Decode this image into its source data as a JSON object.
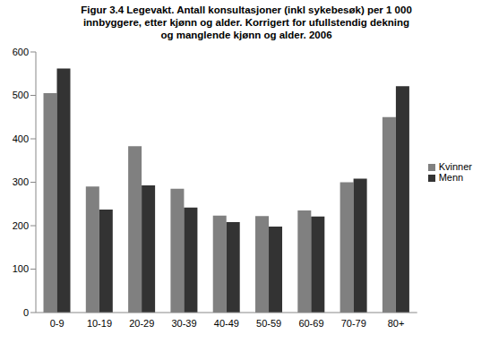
{
  "chart_data": {
    "type": "bar",
    "title": "Figur 3.4 Legevakt. Antall konsultasjoner (inkl sykebesøk) per 1 000 innbyggere, etter kjønn og alder. Korrigert for ufullstendig dekning og manglende kjønn og alder. 2006",
    "categories": [
      "0-9",
      "10-19",
      "20-29",
      "30-39",
      "40-49",
      "50-59",
      "60-69",
      "70-79",
      "80+"
    ],
    "series": [
      {
        "name": "Kvinner",
        "color": "#808080",
        "values": [
          505,
          290,
          383,
          285,
          223,
          222,
          235,
          300,
          450
        ]
      },
      {
        "name": "Menn",
        "color": "#333333",
        "values": [
          562,
          237,
          293,
          242,
          208,
          198,
          221,
          308,
          521
        ]
      }
    ],
    "ylim": [
      0,
      600
    ],
    "yticks": [
      0,
      100,
      200,
      300,
      400,
      500,
      600
    ],
    "grid": false,
    "legend": "right"
  }
}
